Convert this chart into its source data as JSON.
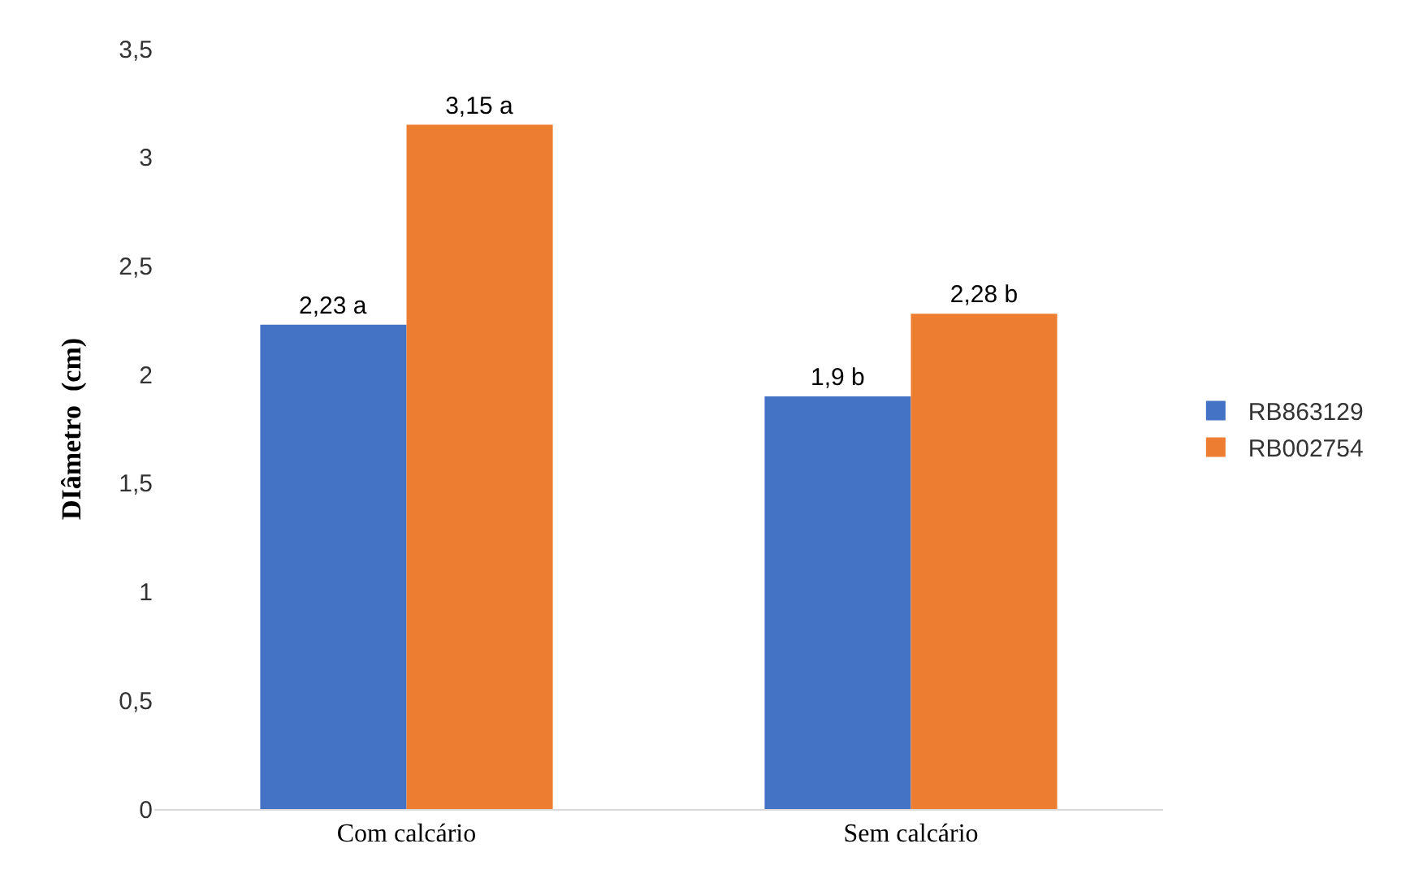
{
  "chart_data": {
    "type": "bar",
    "ylabel": "DIâmetro  (cm)",
    "categories": [
      "Com calcário",
      "Sem calcário"
    ],
    "series": [
      {
        "name": "RB863129",
        "color": "#4472c4",
        "values": [
          2.23,
          1.9
        ],
        "value_labels": [
          "2,23 a",
          "1,9 b"
        ]
      },
      {
        "name": "RB002754",
        "color": "#ed7d31",
        "values": [
          3.15,
          2.28
        ],
        "value_labels": [
          "3,15 a",
          "2,28 b"
        ]
      }
    ],
    "ylim": [
      0,
      3.5
    ],
    "yticks": [
      0,
      {
        "value": 0.5,
        "label": "0,5"
      },
      1,
      {
        "value": 1.5,
        "label": "1,5"
      },
      2,
      {
        "value": 2.5,
        "label": "2,5"
      },
      3,
      {
        "value": 3.5,
        "label": "3,5"
      }
    ],
    "grid": false,
    "legend": "right"
  }
}
